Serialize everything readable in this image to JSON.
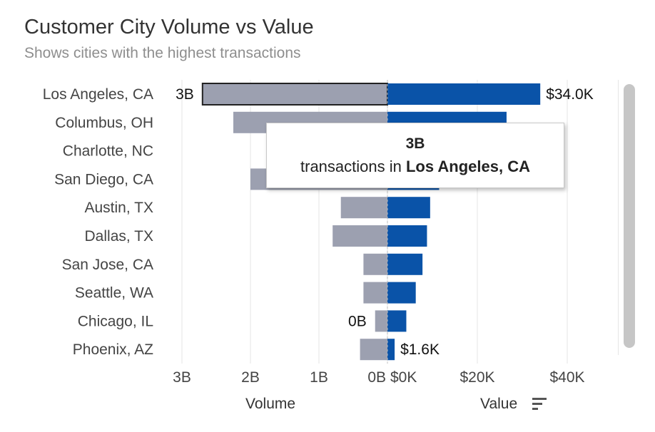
{
  "header": {
    "title": "Customer City Volume vs Value",
    "subtitle": "Shows cities with the highest transactions"
  },
  "tooltip": {
    "value": "3B",
    "prefix": "transactions in",
    "city": "Los Angeles, CA"
  },
  "axes": {
    "volume_label": "Volume",
    "value_label": "Value",
    "sort_icon": "sort-descending-icon"
  },
  "colors": {
    "volume": "#9ca0b0",
    "value": "#0a53a8",
    "highlight_border": "#222222"
  },
  "chart_data": {
    "type": "bar",
    "categories": [
      "Los Angeles, CA",
      "Columbus, OH",
      "Charlotte, NC",
      "San Diego, CA",
      "Austin, TX",
      "Dallas, TX",
      "San Jose, CA",
      "Seattle, WA",
      "Chicago, IL",
      "Phoenix, AZ"
    ],
    "series": [
      {
        "values": [
          2.7,
          2.25,
          1.7,
          2.0,
          0.68,
          0.8,
          0.35,
          0.35,
          0.18,
          0.4
        ]
      },
      {
        "values": [
          34.0,
          26.5,
          17.0,
          11.5,
          9.5,
          8.8,
          7.8,
          6.3,
          4.2,
          1.6
        ]
      }
    ],
    "volume_axis": {
      "ticks": [
        "3B",
        "2B",
        "1B",
        "0B"
      ],
      "tick_values": [
        3,
        2,
        1,
        0
      ],
      "max": 3,
      "reversed": true
    },
    "value_axis": {
      "ticks": [
        "$0K",
        "$20K",
        "$40K"
      ],
      "tick_values": [
        0,
        20,
        40
      ],
      "max": 40
    },
    "data_labels": [
      {
        "series": 0,
        "index": 0,
        "text": "3B"
      },
      {
        "series": 1,
        "index": 0,
        "text": "$34.0K"
      },
      {
        "series": 0,
        "index": 8,
        "text": "0B"
      },
      {
        "series": 1,
        "index": 9,
        "text": "$1.6K"
      }
    ],
    "highlighted_index": 0,
    "grid": true
  }
}
